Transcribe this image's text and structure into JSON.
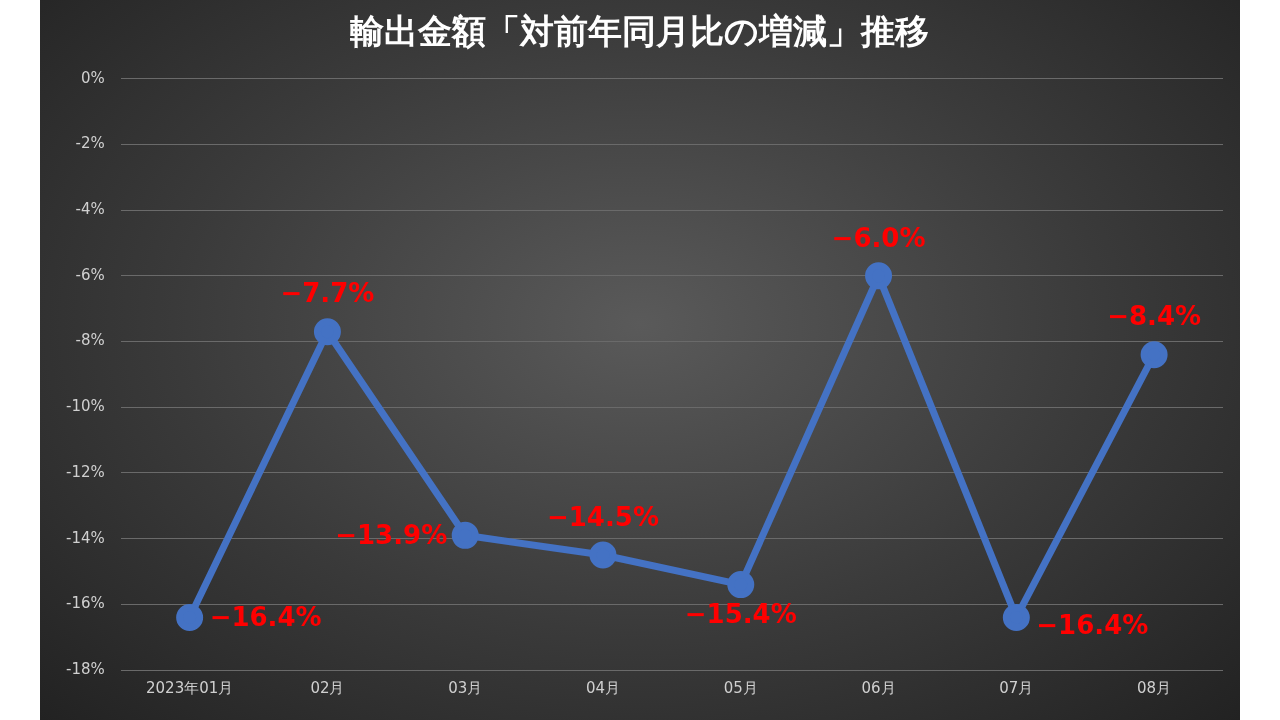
{
  "chart_data": {
    "type": "line",
    "title": "輸出金額「対前年同月比の増減」推移",
    "categories": [
      "2023年01月",
      "02月",
      "03月",
      "04月",
      "05月",
      "06月",
      "07月",
      "08月"
    ],
    "series": [
      {
        "color": "#4472c4",
        "values": [
          -16.4,
          -7.7,
          -13.9,
          -14.5,
          -15.4,
          -6.0,
          -16.4,
          -8.4
        ],
        "value_labels": [
          "−16.4%",
          "−7.7%",
          "−13.9%",
          "−14.5%",
          "−15.4%",
          "−6.0%",
          "−16.4%",
          "−8.4%"
        ]
      }
    ],
    "ylim": [
      -18,
      0
    ],
    "yticks": [
      {
        "value": 0,
        "label": "0%"
      },
      {
        "value": -2,
        "label": "-2%"
      },
      {
        "value": -4,
        "label": "-4%"
      },
      {
        "value": -6,
        "label": "-6%"
      },
      {
        "value": -8,
        "label": "-8%"
      },
      {
        "value": -10,
        "label": "-10%"
      },
      {
        "value": -12,
        "label": "-12%"
      },
      {
        "value": -14,
        "label": "-14%"
      },
      {
        "value": -16,
        "label": "-16%"
      },
      {
        "value": -18,
        "label": "-18%"
      }
    ],
    "grid": "y",
    "legend": false,
    "marker": "circle",
    "line_style": "solid"
  }
}
